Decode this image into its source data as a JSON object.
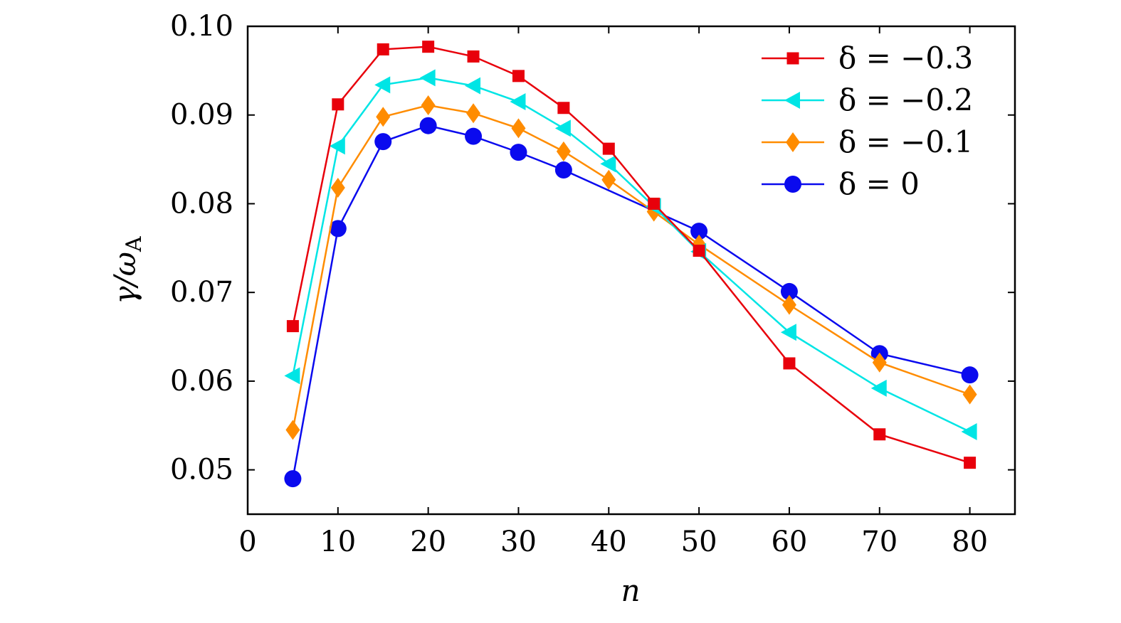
{
  "chart_data": {
    "type": "line",
    "xlabel": "n",
    "ylabel_main": "γ/ω",
    "ylabel_sub": "A",
    "xlim": [
      0,
      85
    ],
    "ylim": [
      0.045,
      0.1
    ],
    "xticks": [
      0,
      10,
      20,
      30,
      40,
      50,
      60,
      70,
      80
    ],
    "xtick_labels": [
      "0",
      "10",
      "20",
      "30",
      "40",
      "50",
      "60",
      "70",
      "80"
    ],
    "yticks": [
      0.05,
      0.06,
      0.07,
      0.08,
      0.09,
      0.1
    ],
    "ytick_labels": [
      "0.05",
      "0.06",
      "0.07",
      "0.08",
      "0.09",
      "0.10"
    ],
    "grid": false,
    "legend_position": "top-right",
    "x": [
      5,
      10,
      15,
      20,
      25,
      30,
      35,
      40,
      45,
      50,
      60,
      70,
      80
    ],
    "series": [
      {
        "name": "δ = −0.3",
        "color": "#e8000b",
        "marker": "square",
        "values": [
          0.0662,
          0.0912,
          0.0974,
          0.0977,
          0.0966,
          0.0944,
          0.0908,
          0.0862,
          0.08,
          0.0747,
          0.062,
          0.054,
          0.0508
        ]
      },
      {
        "name": "δ = −0.2",
        "color": "#00e5e5",
        "marker": "triangle-left",
        "values": [
          0.0606,
          0.0865,
          0.0934,
          0.0942,
          0.0933,
          0.0915,
          0.0885,
          0.0845,
          0.0797,
          0.0746,
          0.0655,
          0.0592,
          0.0543
        ]
      },
      {
        "name": "δ = −0.1",
        "color": "#ff8c00",
        "marker": "diamond",
        "values": [
          0.0545,
          0.0818,
          0.0898,
          0.0911,
          0.0902,
          0.0885,
          0.0859,
          0.0827,
          0.0791,
          0.0754,
          0.0686,
          0.0621,
          0.0585
        ]
      },
      {
        "name": "δ = 0",
        "color": "#0a0aee",
        "marker": "circle",
        "values": [
          0.049,
          0.0772,
          0.087,
          0.0888,
          0.0876,
          0.0858,
          0.0838,
          null,
          null,
          0.0769,
          0.0701,
          0.0631,
          0.0607
        ]
      }
    ]
  }
}
